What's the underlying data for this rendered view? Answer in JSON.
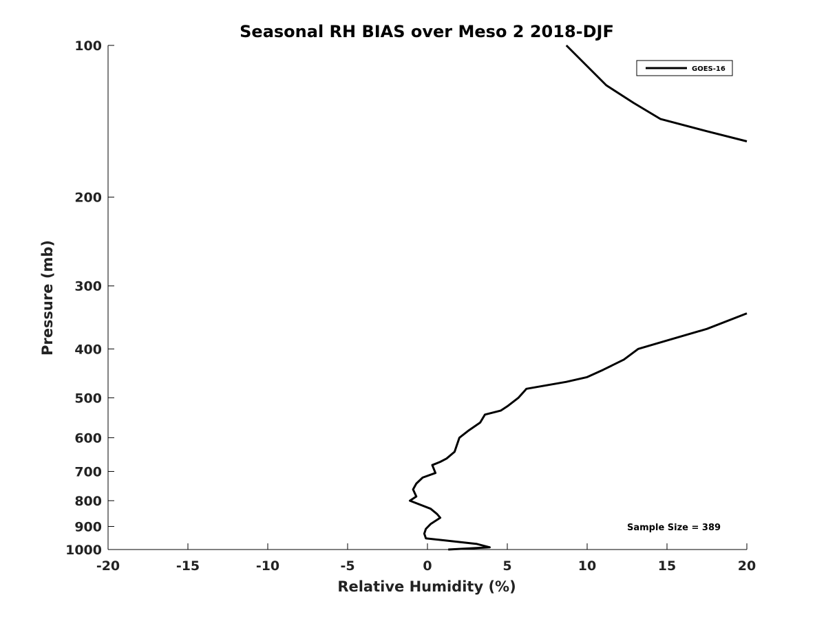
{
  "chart_data": {
    "type": "line",
    "title": "Seasonal RH BIAS over Meso 2  2018-DJF",
    "xlabel": "Relative Humidity (%)",
    "ylabel": "Pressure (mb)",
    "xlim": [
      -20,
      20
    ],
    "ylim": [
      100,
      1000
    ],
    "yscale": "log",
    "y_reversed": true,
    "xticks": [
      -20,
      -15,
      -10,
      -5,
      0,
      5,
      10,
      15,
      20
    ],
    "xtick_labels": [
      "-20",
      "-15",
      "-10",
      "-5",
      "0",
      "5",
      "10",
      "15",
      "20"
    ],
    "yticks": [
      100,
      200,
      300,
      400,
      500,
      600,
      700,
      800,
      900,
      1000
    ],
    "ytick_labels": [
      "100",
      "200",
      "300",
      "400",
      "500",
      "600",
      "700",
      "800",
      "900",
      "1000"
    ],
    "grid": false,
    "legend_location": "top-right",
    "series": [
      {
        "name": "GOES-16",
        "color": "#000000",
        "segments": [
          [
            [
              8.7,
              100
            ],
            [
              11.2,
              120
            ],
            [
              12.9,
              130
            ],
            [
              14.6,
              140
            ],
            [
              17.5,
              148
            ],
            [
              20,
              155
            ]
          ],
          [
            [
              20,
              340
            ],
            [
              17.5,
              365
            ],
            [
              15.0,
              385
            ],
            [
              13.2,
              400
            ],
            [
              12.3,
              420
            ],
            [
              11.0,
              440
            ],
            [
              10.0,
              455
            ],
            [
              8.7,
              465
            ],
            [
              6.2,
              480
            ],
            [
              5.7,
              500
            ],
            [
              5.0,
              520
            ],
            [
              4.6,
              530
            ],
            [
              3.6,
              540
            ],
            [
              3.3,
              560
            ],
            [
              2.6,
              580
            ],
            [
              2.0,
              600
            ],
            [
              1.7,
              640
            ],
            [
              1.2,
              660
            ],
            [
              0.8,
              670
            ],
            [
              0.3,
              680
            ],
            [
              0.5,
              705
            ],
            [
              -0.3,
              720
            ],
            [
              -0.7,
              740
            ],
            [
              -0.9,
              760
            ],
            [
              -0.7,
              785
            ],
            [
              -1.1,
              800
            ],
            [
              0.2,
              830
            ],
            [
              0.6,
              850
            ],
            [
              0.8,
              865
            ],
            [
              0.2,
              890
            ],
            [
              -0.1,
              910
            ],
            [
              -0.2,
              930
            ],
            [
              -0.1,
              950
            ],
            [
              1.2,
              960
            ],
            [
              3.1,
              975
            ],
            [
              3.9,
              990
            ],
            [
              1.3,
              1000
            ]
          ]
        ]
      }
    ],
    "annotations": [
      "Sample Size = 389"
    ]
  }
}
